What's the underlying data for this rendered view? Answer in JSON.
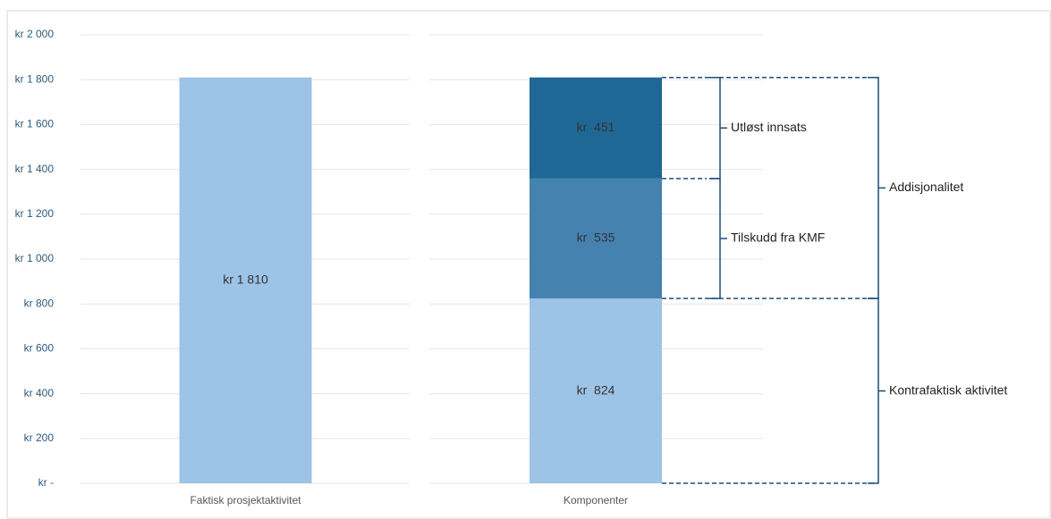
{
  "chart_data": {
    "type": "stacked_bar",
    "categories": [
      "Faktisk prosjektaktivitet",
      "Komponenter"
    ],
    "series": [
      {
        "name": "Kontrafaktisk aktivitet",
        "color": "#9dc3e6",
        "values": [
          1810,
          824
        ],
        "value_labels": [
          "kr 1 810",
          "kr  824"
        ]
      },
      {
        "name": "Tilskudd fra KMF",
        "color": "#4682b0",
        "values": [
          null,
          535
        ],
        "value_labels": [
          null,
          "kr  535"
        ]
      },
      {
        "name": "Utløst innsats",
        "color": "#1f6794",
        "values": [
          null,
          451
        ],
        "value_labels": [
          null,
          "kr  451"
        ]
      }
    ],
    "annotations": [
      "Utløst innsats",
      "Tilskudd fra KMF",
      "Addisjonalitet",
      "Kontrafaktisk aktivitet"
    ],
    "ylim": [
      0,
      2000
    ],
    "yticks": [
      {
        "value": 0,
        "label": "kr -"
      },
      {
        "value": 200,
        "label": "kr 200"
      },
      {
        "value": 400,
        "label": "kr 400"
      },
      {
        "value": 600,
        "label": "kr 600"
      },
      {
        "value": 800,
        "label": "kr 800"
      },
      {
        "value": 1000,
        "label": "kr 1 000"
      },
      {
        "value": 1200,
        "label": "kr 1 200"
      },
      {
        "value": 1400,
        "label": "kr 1 400"
      },
      {
        "value": 1600,
        "label": "kr 1 600"
      },
      {
        "value": 1800,
        "label": "kr 1 800"
      },
      {
        "value": 2000,
        "label": "kr 2 000"
      }
    ],
    "grid": true
  }
}
